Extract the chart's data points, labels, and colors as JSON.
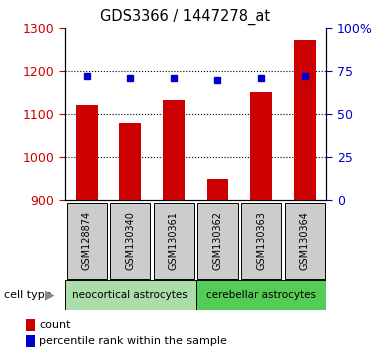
{
  "title": "GDS3366 / 1447278_at",
  "samples": [
    "GSM128874",
    "GSM130340",
    "GSM130361",
    "GSM130362",
    "GSM130363",
    "GSM130364"
  ],
  "counts": [
    1122,
    1080,
    1133,
    948,
    1152,
    1272
  ],
  "percentiles": [
    72,
    71,
    71,
    70,
    71,
    72
  ],
  "group1_label": "neocortical astrocytes",
  "group1_color": "#aaddaa",
  "group2_label": "cerebellar astrocytes",
  "group2_color": "#55cc55",
  "ylim_left": [
    900,
    1300
  ],
  "ylim_right": [
    0,
    100
  ],
  "yticks_left": [
    900,
    1000,
    1100,
    1200,
    1300
  ],
  "yticks_right": [
    0,
    25,
    50,
    75,
    100
  ],
  "bar_color": "#cc0000",
  "dot_color": "#0000cc",
  "tick_color_left": "#cc0000",
  "tick_color_right": "#0000cc",
  "sample_box_color": "#cccccc",
  "legend_count_label": "count",
  "legend_pct_label": "percentile rank within the sample",
  "cell_type_label": "cell type"
}
